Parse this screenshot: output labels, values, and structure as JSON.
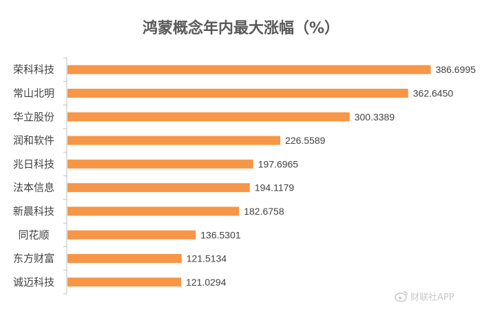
{
  "chart_data": {
    "type": "bar",
    "orientation": "horizontal",
    "title": "鸿蒙概念年内最大涨幅（%）",
    "categories": [
      "荣科科技",
      "常山北明",
      "华立股份",
      "润和软件",
      "兆日科技",
      "法本信息",
      "新晨科技",
      "同花顺",
      "东方财富",
      "诚迈科技"
    ],
    "values": [
      386.6995,
      362.645,
      300.3389,
      226.5589,
      197.6965,
      194.1179,
      182.6758,
      136.5301,
      121.5134,
      121.0294
    ],
    "value_labels": [
      "386.6995",
      "362.6450",
      "300.3389",
      "226.5589",
      "197.6965",
      "194.1179",
      "182.6758",
      "136.5301",
      "121.5134",
      "121.0294"
    ],
    "xlim": [
      0,
      420
    ],
    "grid": false,
    "bar_color": "#f79646",
    "axis_color": "#bfbfbf"
  },
  "watermark": {
    "text": "财联社APP",
    "icon": "weibo-icon"
  }
}
